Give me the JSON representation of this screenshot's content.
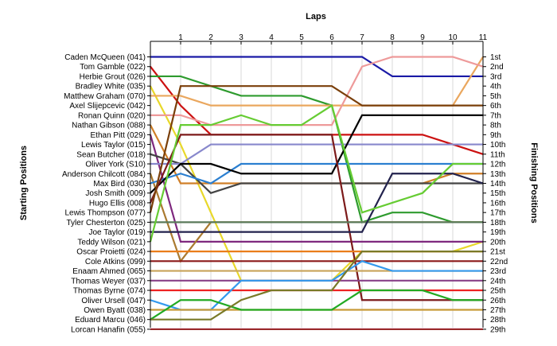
{
  "chart_data": {
    "type": "line",
    "title": "Laps",
    "ylabel_left": "Starting Positions",
    "ylabel_right": "Finishing Positions",
    "laps": [
      0,
      1,
      2,
      3,
      4,
      5,
      6,
      7,
      8,
      9,
      10,
      11
    ],
    "x_tick_labels": [
      "1",
      "2",
      "3",
      "4",
      "5",
      "6",
      "7",
      "8",
      "9",
      "10",
      "11"
    ],
    "finishing_labels": [
      "1st",
      "2nd",
      "3rd",
      "4th",
      "5th",
      "6th",
      "7th",
      "8th",
      "9th",
      "10th",
      "11th",
      "12th",
      "13th",
      "14th",
      "15th",
      "16th",
      "17th",
      "18th",
      "19th",
      "20th",
      "21st",
      "22nd",
      "23rd",
      "24th",
      "25th",
      "26th",
      "27th",
      "28th",
      "29th"
    ],
    "series": [
      {
        "name": "Caden McQueen (041)",
        "color": "#1a1aa6",
        "positions": [
          1,
          1,
          1,
          1,
          1,
          1,
          1,
          1,
          3,
          3,
          3,
          3
        ]
      },
      {
        "name": "Tom Gamble (022)",
        "color": "#cc1111",
        "positions": [
          2,
          6,
          9,
          9,
          9,
          9,
          9,
          9,
          9,
          9,
          10,
          11
        ]
      },
      {
        "name": "Herbie Grout (026)",
        "color": "#2e9b2e",
        "positions": [
          3,
          3,
          4,
          5,
          5,
          5,
          6,
          18,
          17,
          17,
          18,
          18
        ]
      },
      {
        "name": "Bradley White (035)",
        "color": "#e8d82a",
        "positions": [
          4,
          10,
          17,
          24,
          24,
          24,
          24,
          21,
          21,
          21,
          21,
          20
        ]
      },
      {
        "name": "Matthew Graham (070)",
        "color": "#eaa75e",
        "positions": [
          5,
          5,
          6,
          6,
          6,
          6,
          6,
          6,
          6,
          6,
          6,
          1
        ]
      },
      {
        "name": "Axel Slijepcevic (042)",
        "color": "#ee9a9a",
        "positions": [
          7,
          7,
          8,
          8,
          8,
          8,
          8,
          2,
          1,
          1,
          1,
          2
        ]
      },
      {
        "name": "Ronan Quinn (020)",
        "color": "#d07f28",
        "positions": [
          8,
          14,
          14,
          14,
          14,
          14,
          14,
          14,
          14,
          14,
          13,
          13
        ]
      },
      {
        "name": "Nathan Gibson (088)",
        "color": "#7e287e",
        "positions": [
          9,
          20,
          20,
          20,
          20,
          20,
          20,
          20,
          20,
          20,
          20,
          20
        ]
      },
      {
        "name": "Ethan Pitt (029)",
        "color": "#444444",
        "positions": [
          11,
          12,
          15,
          14,
          14,
          14,
          14,
          14,
          14,
          14,
          14,
          14
        ]
      },
      {
        "name": "Lewis Taylor (015)",
        "color": "#8888cc",
        "positions": [
          12,
          12,
          10,
          10,
          10,
          10,
          10,
          10,
          10,
          10,
          10,
          10
        ]
      },
      {
        "name": "Sean Butcher (018)",
        "color": "#aa7a30",
        "positions": [
          13,
          22,
          18,
          18,
          18,
          18,
          18,
          18,
          18,
          18,
          18,
          18
        ]
      },
      {
        "name": "Oliver York (S10)",
        "color": "#2b7fd0",
        "positions": [
          14,
          13,
          14,
          12,
          12,
          12,
          12,
          12,
          12,
          12,
          12,
          12
        ]
      },
      {
        "name": "Anderson Chilcott (084)",
        "color": "#000000",
        "positions": [
          15,
          12,
          12,
          13,
          13,
          13,
          13,
          7,
          7,
          7,
          7,
          7
        ]
      },
      {
        "name": "Max Bird (030)",
        "color": "#7c1a1a",
        "positions": [
          16,
          9,
          9,
          9,
          9,
          9,
          9,
          26,
          26,
          26,
          26,
          26
        ]
      },
      {
        "name": "Josh Smith (009)",
        "color": "#7a3f0a",
        "positions": [
          17,
          4,
          4,
          4,
          4,
          4,
          4,
          6,
          6,
          6,
          6,
          6
        ]
      },
      {
        "name": "Hugo Ellis (008)",
        "color": "#5a7a5a",
        "positions": [
          18,
          18,
          18,
          18,
          18,
          18,
          18,
          18,
          18,
          18,
          18,
          18
        ]
      },
      {
        "name": "Lewis Thompson (077)",
        "color": "#22224d",
        "positions": [
          19,
          19,
          19,
          19,
          19,
          19,
          19,
          19,
          13,
          13,
          13,
          14
        ]
      },
      {
        "name": "Tyler Chesterton (025)",
        "color": "#66cc33",
        "positions": [
          20,
          8,
          8,
          7,
          8,
          8,
          6,
          17,
          16,
          15,
          12,
          12
        ]
      },
      {
        "name": "Joe Taylor (019)",
        "color": "#ea7d1a",
        "positions": [
          21,
          21,
          21,
          21,
          21,
          21,
          21,
          21,
          21,
          21,
          21,
          21
        ]
      },
      {
        "name": "Teddy Wilson (021)",
        "color": "#8b1818",
        "positions": [
          22,
          22,
          22,
          22,
          22,
          22,
          22,
          22,
          22,
          22,
          22,
          22
        ]
      },
      {
        "name": "Oscar Proietti (024)",
        "color": "#c8a35a",
        "positions": [
          23,
          23,
          23,
          23,
          23,
          23,
          23,
          23,
          23,
          23,
          23,
          23
        ]
      },
      {
        "name": "Cole Atkins (099)",
        "color": "#884088",
        "positions": [
          24,
          24,
          24,
          24,
          24,
          24,
          24,
          24,
          24,
          24,
          24,
          24
        ]
      },
      {
        "name": "Enaam Ahmed (065)",
        "color": "#ee2222",
        "positions": [
          25,
          25,
          25,
          25,
          25,
          25,
          25,
          25,
          25,
          25,
          25,
          25
        ]
      },
      {
        "name": "Thomas Weyer (037)",
        "color": "#3399ee",
        "positions": [
          26,
          27,
          27,
          24,
          24,
          24,
          24,
          22,
          23,
          23,
          23,
          23
        ]
      },
      {
        "name": "Thomas Byrne (074)",
        "color": "#c89a38",
        "positions": [
          27,
          27,
          27,
          27,
          27,
          27,
          27,
          27,
          27,
          27,
          27,
          27
        ]
      },
      {
        "name": "Oliver Ursell (047)",
        "color": "#22aa22",
        "positions": [
          28,
          26,
          26,
          27,
          27,
          27,
          27,
          25,
          25,
          25,
          26,
          26
        ]
      },
      {
        "name": "Owen Byatt (038)",
        "color": "#ee55ee",
        "positions": [
          29,
          29,
          29,
          29,
          29,
          29,
          29,
          29,
          29,
          29,
          29,
          29
        ]
      },
      {
        "name": "Eduard Marcu (046)",
        "color": "#7a7a28",
        "positions": [
          28,
          28,
          28,
          26,
          25,
          25,
          25,
          21,
          21,
          21,
          21,
          21
        ]
      },
      {
        "name": "Lorcan Hanafin (055)",
        "color": "#9a2a2a",
        "positions": [
          29,
          29,
          29,
          29,
          29,
          29,
          29,
          29,
          29,
          29,
          29,
          29
        ]
      }
    ]
  }
}
